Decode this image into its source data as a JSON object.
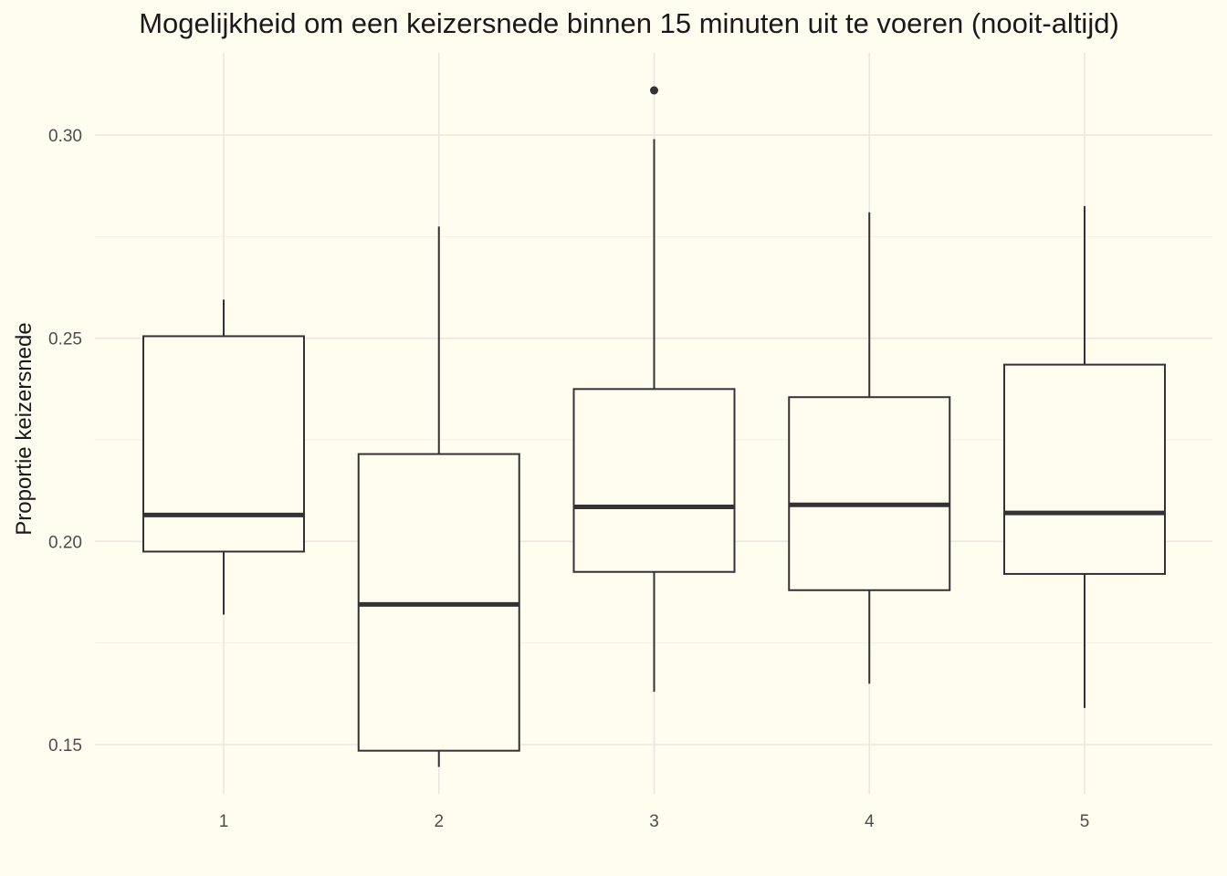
{
  "chart_data": {
    "type": "boxplot",
    "title": "Mogelijkheid om een keizersnede binnen 15 minuten uit te voeren (nooit-altijd)",
    "xlabel": "",
    "ylabel": "Proportie keizersnede",
    "ylim": [
      0.137,
      0.317
    ],
    "yticks": [
      0.15,
      0.2,
      0.25,
      0.3
    ],
    "ytick_labels": [
      "0.15",
      "0.20",
      "0.25",
      "0.30"
    ],
    "categories": [
      "1",
      "2",
      "3",
      "4",
      "5"
    ],
    "grid": true,
    "boxes": [
      {
        "category": "1",
        "whisker_low": 0.182,
        "q1": 0.1975,
        "median": 0.2065,
        "q3": 0.2505,
        "whisker_high": 0.2595,
        "outliers": []
      },
      {
        "category": "2",
        "whisker_low": 0.1445,
        "q1": 0.1485,
        "median": 0.1845,
        "q3": 0.2215,
        "whisker_high": 0.2775,
        "outliers": []
      },
      {
        "category": "3",
        "whisker_low": 0.163,
        "q1": 0.1925,
        "median": 0.2085,
        "q3": 0.2375,
        "whisker_high": 0.299,
        "outliers": [
          0.311
        ]
      },
      {
        "category": "4",
        "whisker_low": 0.165,
        "q1": 0.188,
        "median": 0.209,
        "q3": 0.2355,
        "whisker_high": 0.281,
        "outliers": []
      },
      {
        "category": "5",
        "whisker_low": 0.159,
        "q1": 0.192,
        "median": 0.207,
        "q3": 0.2435,
        "whisker_high": 0.2825,
        "outliers": []
      }
    ],
    "colors": {
      "background": "#fffdf0",
      "box_line": "#333333",
      "grid": "#e9e8e0"
    }
  }
}
